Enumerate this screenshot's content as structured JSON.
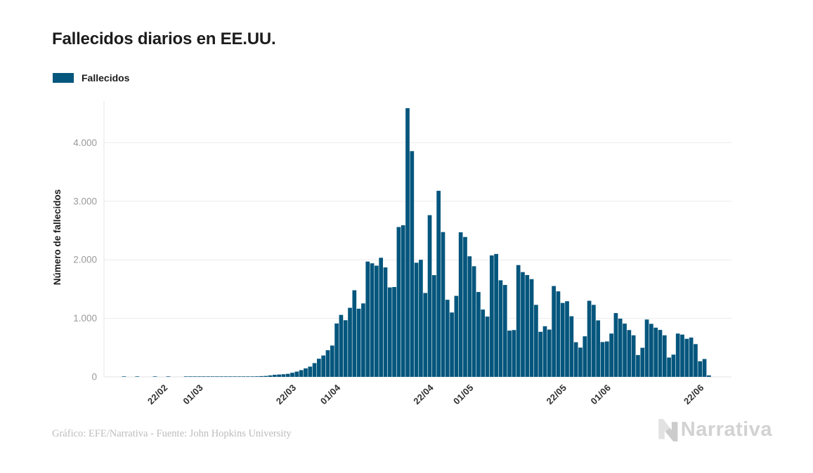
{
  "title": "Fallecidos diarios en EE.UU.",
  "legend": {
    "label": "Fallecidos",
    "color": "#05567d"
  },
  "footer": {
    "credit": "Gráfico: EFE/Narrativa - Fuente: John Hopkins University",
    "brand": "Narrativa"
  },
  "chart_data": {
    "type": "bar",
    "title": "Fallecidos diarios en EE.UU.",
    "series_name": "Fallecidos",
    "xlabel": "",
    "ylabel": "Número de fallecidos",
    "ylim": [
      0,
      4765
    ],
    "yticks": [
      0,
      1000,
      2000,
      3000,
      4000
    ],
    "ytick_labels": [
      "0",
      "1.000",
      "2.000",
      "3.000",
      "4.000"
    ],
    "xtick_labels": [
      "22/02",
      "01/03",
      "22/03",
      "01/04",
      "22/04",
      "01/05",
      "22/05",
      "01/06",
      "22/06"
    ],
    "grid": true,
    "legend_position": "top-left",
    "bar_color": "#05567d",
    "x": [
      "08/02",
      "09/02",
      "10/02",
      "11/02",
      "12/02",
      "13/02",
      "14/02",
      "15/02",
      "16/02",
      "17/02",
      "18/02",
      "19/02",
      "20/02",
      "21/02",
      "22/02",
      "23/02",
      "24/02",
      "25/02",
      "26/02",
      "27/02",
      "28/02",
      "29/02",
      "01/03",
      "02/03",
      "03/03",
      "04/03",
      "05/03",
      "06/03",
      "07/03",
      "08/03",
      "09/03",
      "10/03",
      "11/03",
      "12/03",
      "13/03",
      "14/03",
      "15/03",
      "16/03",
      "17/03",
      "18/03",
      "19/03",
      "20/03",
      "21/03",
      "22/03",
      "23/03",
      "24/03",
      "25/03",
      "26/03",
      "27/03",
      "28/03",
      "29/03",
      "30/03",
      "31/03",
      "01/04",
      "02/04",
      "03/04",
      "04/04",
      "05/04",
      "06/04",
      "07/04",
      "08/04",
      "09/04",
      "10/04",
      "11/04",
      "12/04",
      "13/04",
      "14/04",
      "15/04",
      "16/04",
      "17/04",
      "18/04",
      "19/04",
      "20/04",
      "21/04",
      "22/04",
      "23/04",
      "24/04",
      "25/04",
      "26/04",
      "27/04",
      "28/04",
      "29/04",
      "30/04",
      "01/05",
      "02/05",
      "03/05",
      "04/05",
      "05/05",
      "06/05",
      "07/05",
      "08/05",
      "09/05",
      "10/05",
      "11/05",
      "12/05",
      "13/05",
      "14/05",
      "15/05",
      "16/05",
      "17/05",
      "18/05",
      "19/05",
      "20/05",
      "21/05",
      "22/05",
      "23/05",
      "24/05",
      "25/05",
      "26/05",
      "27/05",
      "28/05",
      "29/05",
      "30/05",
      "31/05",
      "01/06",
      "02/06",
      "03/06",
      "04/06",
      "05/06",
      "06/06",
      "07/06",
      "08/06",
      "09/06",
      "10/06",
      "11/06",
      "12/06",
      "13/06",
      "14/06",
      "15/06",
      "16/06",
      "17/06",
      "18/06",
      "19/06",
      "20/06",
      "21/06",
      "22/06",
      "23/06"
    ],
    "values": [
      0,
      0,
      0,
      0,
      1,
      0,
      0,
      1,
      0,
      0,
      0,
      1,
      0,
      0,
      1,
      0,
      0,
      0,
      1,
      2,
      1,
      1,
      1,
      4,
      3,
      2,
      1,
      3,
      4,
      3,
      4,
      5,
      8,
      7,
      10,
      13,
      16,
      25,
      35,
      40,
      45,
      52,
      70,
      90,
      115,
      145,
      175,
      235,
      310,
      365,
      455,
      535,
      912,
      1059,
      968,
      1180,
      1480,
      1165,
      1255,
      1970,
      1940,
      1900,
      2035,
      1870,
      1528,
      1535,
      2560,
      2590,
      4591,
      3857,
      1950,
      2000,
      1433,
      2763,
      1738,
      3179,
      2474,
      1317,
      1100,
      1384,
      2470,
      2390,
      2060,
      1890,
      1450,
      1150,
      1030,
      2075,
      2100,
      1650,
      1570,
      790,
      800,
      1910,
      1790,
      1740,
      1670,
      1230,
      770,
      865,
      808,
      1552,
      1461,
      1263,
      1292,
      1036,
      592,
      500,
      693,
      1300,
      1230,
      965,
      595,
      605,
      740,
      1090,
      995,
      910,
      800,
      710,
      373,
      497,
      980,
      906,
      841,
      802,
      710,
      330,
      380,
      740,
      722,
      650,
      672,
      560,
      267,
      305,
      25
    ]
  }
}
